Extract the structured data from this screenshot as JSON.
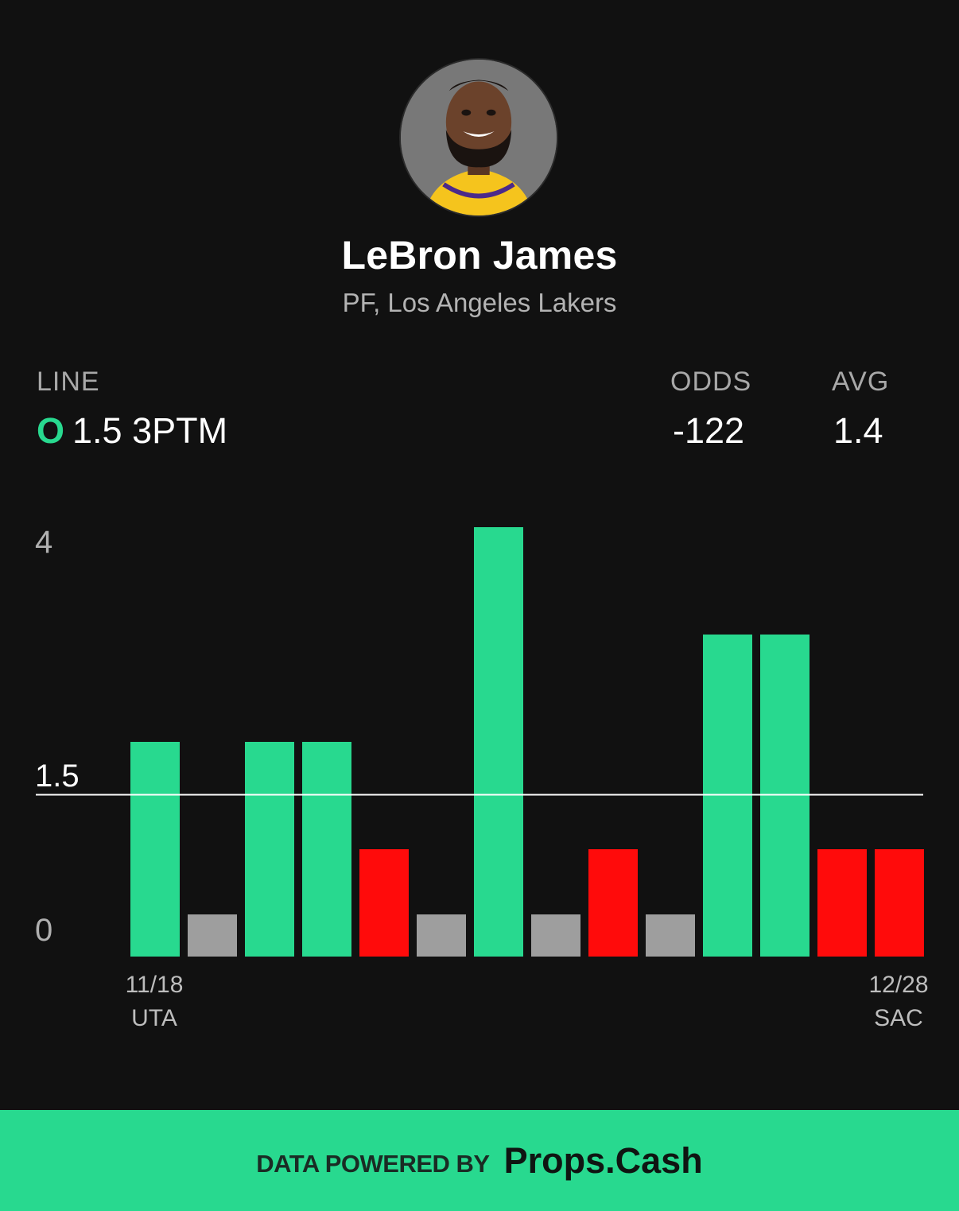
{
  "player": {
    "name": "LeBron James",
    "subtitle": "PF, Los Angeles Lakers"
  },
  "stats": {
    "line_header": "LINE",
    "odds_header": "ODDS",
    "avg_header": "AVG",
    "side": "O",
    "line_value": "1.5 3PTM",
    "odds": "-122",
    "avg": "1.4"
  },
  "chart_data": {
    "type": "bar",
    "values": [
      2,
      0,
      2,
      2,
      1,
      0,
      4,
      0,
      1,
      0,
      3,
      3,
      1,
      1
    ],
    "bar_status": [
      "over",
      "push",
      "over",
      "over",
      "under",
      "push",
      "over",
      "push",
      "under",
      "push",
      "over",
      "over",
      "under",
      "under"
    ],
    "line": 1.5,
    "line_label": "1.5",
    "ytick_labels": [
      "0",
      "4"
    ],
    "ylim": [
      0,
      4
    ],
    "first_label": {
      "date": "11/18",
      "opp": "UTA"
    },
    "last_label": {
      "date": "12/28",
      "opp": "SAC"
    },
    "colors": {
      "over": "#28d98f",
      "under": "#ff0b0b",
      "push": "#9e9e9e",
      "line": "#ffffff"
    }
  },
  "footer": {
    "prefix": "DATA POWERED BY",
    "brand": "Props.Cash"
  }
}
